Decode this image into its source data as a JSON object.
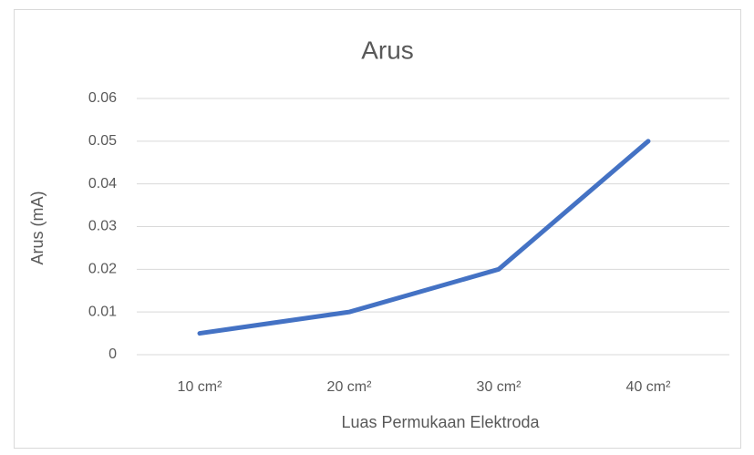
{
  "chart_data": {
    "type": "line",
    "title": "Arus",
    "x_label": "Luas Permukaan Elektroda",
    "y_label": "Arus (mA)",
    "categories": [
      "10 cm²",
      "20 cm²",
      "30 cm²",
      "40 cm²"
    ],
    "values": [
      0.005,
      0.01,
      0.02,
      0.05
    ],
    "color": "#4472c4",
    "ylim": [
      0,
      0.06
    ],
    "yticks": [
      0,
      0.01,
      0.02,
      0.03,
      0.04,
      0.05,
      0.06
    ],
    "grid": true
  }
}
